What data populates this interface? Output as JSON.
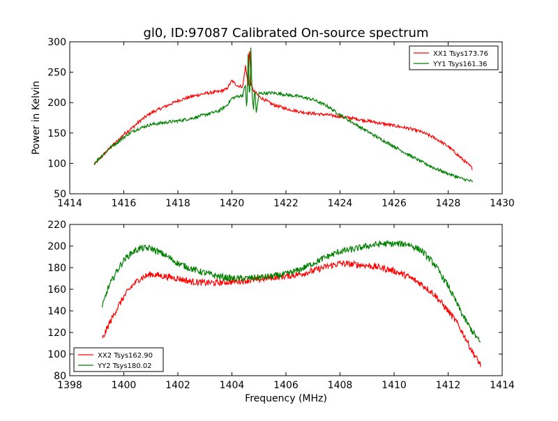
{
  "colors": {
    "red": "#ff0000",
    "green": "#008000"
  },
  "chart_data": [
    {
      "type": "line",
      "title": "gl0, ID:97087 Calibrated On-source spectrum",
      "xlabel": "",
      "ylabel": "Power in Kelvin",
      "xlim": [
        1414,
        1430
      ],
      "ylim": [
        50,
        300
      ],
      "xticks": [
        1414,
        1416,
        1418,
        1420,
        1422,
        1424,
        1426,
        1428,
        1430
      ],
      "yticks": [
        50,
        100,
        150,
        200,
        250,
        300
      ],
      "grid": false,
      "legend_position": "top-right",
      "series": [
        {
          "name": "XX1 Tsys173.76",
          "color": "#ff0000",
          "x": [
            1414.9,
            1415.2,
            1415.5,
            1415.8,
            1416.0,
            1416.3,
            1416.6,
            1417.0,
            1417.5,
            1418.0,
            1418.5,
            1419.0,
            1419.5,
            1419.8,
            1420.0,
            1420.2,
            1420.4,
            1420.5,
            1420.6,
            1420.65,
            1420.7,
            1420.8,
            1421.0,
            1421.5,
            1422.0,
            1422.5,
            1423.0,
            1423.5,
            1424.0,
            1424.5,
            1425.0,
            1425.5,
            1426.0,
            1426.5,
            1427.0,
            1427.5,
            1428.0,
            1428.5,
            1428.9
          ],
          "values": [
            98,
            112,
            126,
            138,
            148,
            158,
            170,
            183,
            193,
            203,
            210,
            215,
            218,
            222,
            236,
            228,
            226,
            260,
            230,
            295,
            230,
            220,
            210,
            197,
            190,
            185,
            182,
            180,
            177,
            174,
            170,
            166,
            162,
            158,
            152,
            142,
            128,
            108,
            92
          ]
        },
        {
          "name": "YY1 Tsys161.36",
          "color": "#008000",
          "x": [
            1414.9,
            1415.2,
            1415.5,
            1415.8,
            1416.0,
            1416.3,
            1416.6,
            1417.0,
            1417.5,
            1418.0,
            1418.5,
            1419.0,
            1419.5,
            1419.8,
            1420.0,
            1420.2,
            1420.4,
            1420.5,
            1420.55,
            1420.6,
            1420.65,
            1420.7,
            1420.75,
            1420.8,
            1420.85,
            1420.9,
            1421.0,
            1421.5,
            1422.0,
            1422.5,
            1423.0,
            1423.5,
            1424.0,
            1424.5,
            1425.0,
            1425.5,
            1426.0,
            1426.5,
            1427.0,
            1427.5,
            1428.0,
            1428.5,
            1428.9
          ],
          "values": [
            100,
            113,
            126,
            136,
            143,
            152,
            158,
            164,
            167,
            170,
            174,
            180,
            186,
            195,
            207,
            210,
            212,
            230,
            183,
            280,
            200,
            290,
            210,
            190,
            225,
            182,
            215,
            216,
            213,
            210,
            205,
            195,
            180,
            166,
            153,
            140,
            128,
            115,
            103,
            92,
            83,
            75,
            70
          ]
        }
      ]
    },
    {
      "type": "line",
      "title": "",
      "xlabel": "Frequency (MHz)",
      "ylabel": "",
      "xlim": [
        1398,
        1414
      ],
      "ylim": [
        80,
        220
      ],
      "xticks": [
        1398,
        1400,
        1402,
        1404,
        1406,
        1408,
        1410,
        1412,
        1414
      ],
      "yticks": [
        80,
        100,
        120,
        140,
        160,
        180,
        200,
        220
      ],
      "grid": false,
      "legend_position": "bottom-left",
      "series": [
        {
          "name": "XX2 Tsys162.90",
          "color": "#ff0000",
          "x": [
            1399.2,
            1399.4,
            1399.7,
            1400.0,
            1400.3,
            1400.6,
            1401.0,
            1401.5,
            1402.0,
            1402.5,
            1403.0,
            1403.5,
            1404.0,
            1404.5,
            1405.0,
            1405.5,
            1406.0,
            1406.5,
            1407.0,
            1407.5,
            1408.0,
            1408.5,
            1409.0,
            1409.5,
            1410.0,
            1410.5,
            1411.0,
            1411.5,
            1412.0,
            1412.3,
            1412.6,
            1412.9,
            1413.2
          ],
          "values": [
            113,
            125,
            140,
            153,
            163,
            170,
            174,
            172,
            170,
            167,
            166,
            166,
            167,
            168,
            169,
            171,
            172,
            174,
            177,
            181,
            184,
            183,
            182,
            180,
            177,
            172,
            165,
            155,
            140,
            130,
            117,
            102,
            90
          ]
        },
        {
          "name": "YY2 Tsys180.02",
          "color": "#008000",
          "x": [
            1399.2,
            1399.4,
            1399.7,
            1400.0,
            1400.3,
            1400.6,
            1401.0,
            1401.5,
            1402.0,
            1402.5,
            1403.0,
            1403.5,
            1404.0,
            1404.5,
            1405.0,
            1405.5,
            1406.0,
            1406.5,
            1407.0,
            1407.5,
            1408.0,
            1408.5,
            1409.0,
            1409.5,
            1410.0,
            1410.5,
            1411.0,
            1411.5,
            1412.0,
            1412.3,
            1412.6,
            1412.9,
            1413.2
          ],
          "values": [
            143,
            160,
            175,
            187,
            194,
            198,
            198,
            192,
            184,
            179,
            175,
            172,
            170,
            170,
            171,
            172,
            174,
            178,
            184,
            190,
            195,
            197,
            200,
            202,
            202,
            202,
            196,
            183,
            163,
            148,
            133,
            121,
            110
          ]
        }
      ]
    }
  ]
}
